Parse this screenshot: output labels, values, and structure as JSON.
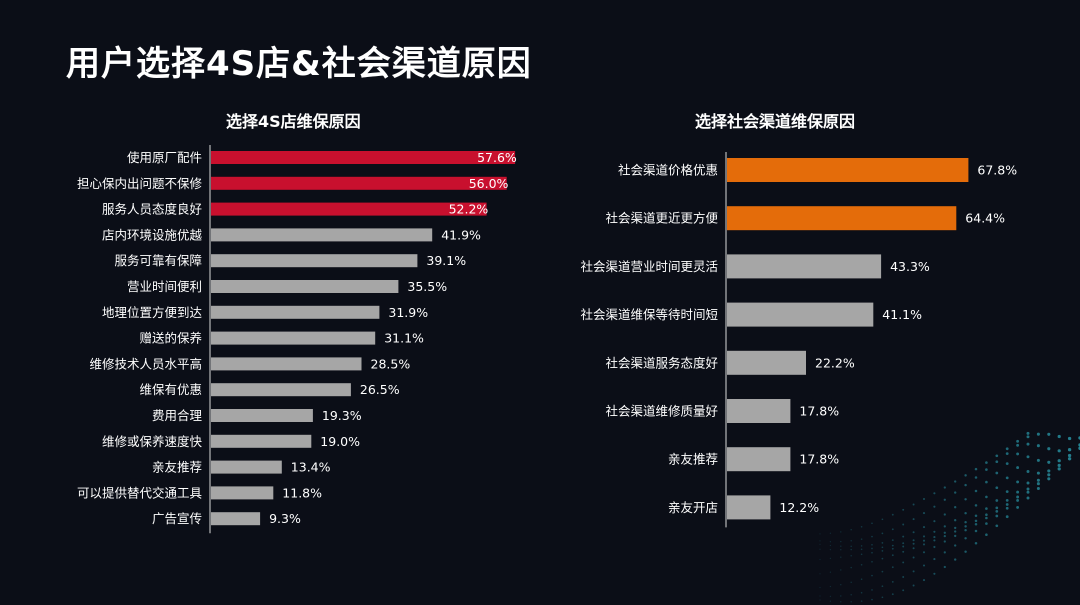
{
  "page": {
    "title": "用户选择4S店&社会渠道原因"
  },
  "colors": {
    "left_highlight": "#c8102e",
    "right_highlight": "#e46c0a",
    "neutral": "#a6a6a6",
    "text": "#ffffff",
    "axis": "#d9d9d9"
  },
  "chart_data": [
    {
      "type": "bar",
      "orientation": "horizontal",
      "title": "选择4S店维保原因",
      "xlabel": "",
      "ylabel": "",
      "value_unit": "%",
      "highlight_top": 3,
      "categories": [
        "使用原厂配件",
        "担心保内出问题不保修",
        "服务人员态度良好",
        "店内环境设施优越",
        "服务可靠有保障",
        "营业时间便利",
        "地理位置方便到达",
        "赠送的保养",
        "维修技术人员水平高",
        "维保有优惠",
        "费用合理",
        "维修或保养速度快",
        "亲友推荐",
        "可以提供替代交通工具",
        "广告宣传"
      ],
      "values": [
        57.6,
        56.0,
        52.2,
        41.9,
        39.1,
        35.5,
        31.9,
        31.1,
        28.5,
        26.5,
        19.3,
        19.0,
        13.4,
        11.8,
        9.3
      ],
      "labels": [
        "57.6%",
        "56.0%",
        "52.2%",
        "41.9%",
        "39.1%",
        "35.5%",
        "31.9%",
        "31.1%",
        "28.5%",
        "26.5%",
        "19.3%",
        "19.0%",
        "13.4%",
        "11.8%",
        "9.3%"
      ],
      "grid": false,
      "legend": "none"
    },
    {
      "type": "bar",
      "orientation": "horizontal",
      "title": "选择社会渠道维保原因",
      "xlabel": "",
      "ylabel": "",
      "value_unit": "%",
      "highlight_top": 2,
      "categories": [
        "社会渠道价格优惠",
        "社会渠道更近更方便",
        "社会渠道营业时间更灵活",
        "社会渠道维保等待时间短",
        "社会渠道服务态度好",
        "社会渠道维修质量好",
        "亲友推荐",
        "亲友开店"
      ],
      "values": [
        67.8,
        64.4,
        43.3,
        41.1,
        22.2,
        17.8,
        17.8,
        12.2
      ],
      "labels": [
        "67.8%",
        "64.4%",
        "43.3%",
        "41.1%",
        "22.2%",
        "17.8%",
        "17.8%",
        "12.2%"
      ],
      "grid": false,
      "legend": "none"
    }
  ]
}
